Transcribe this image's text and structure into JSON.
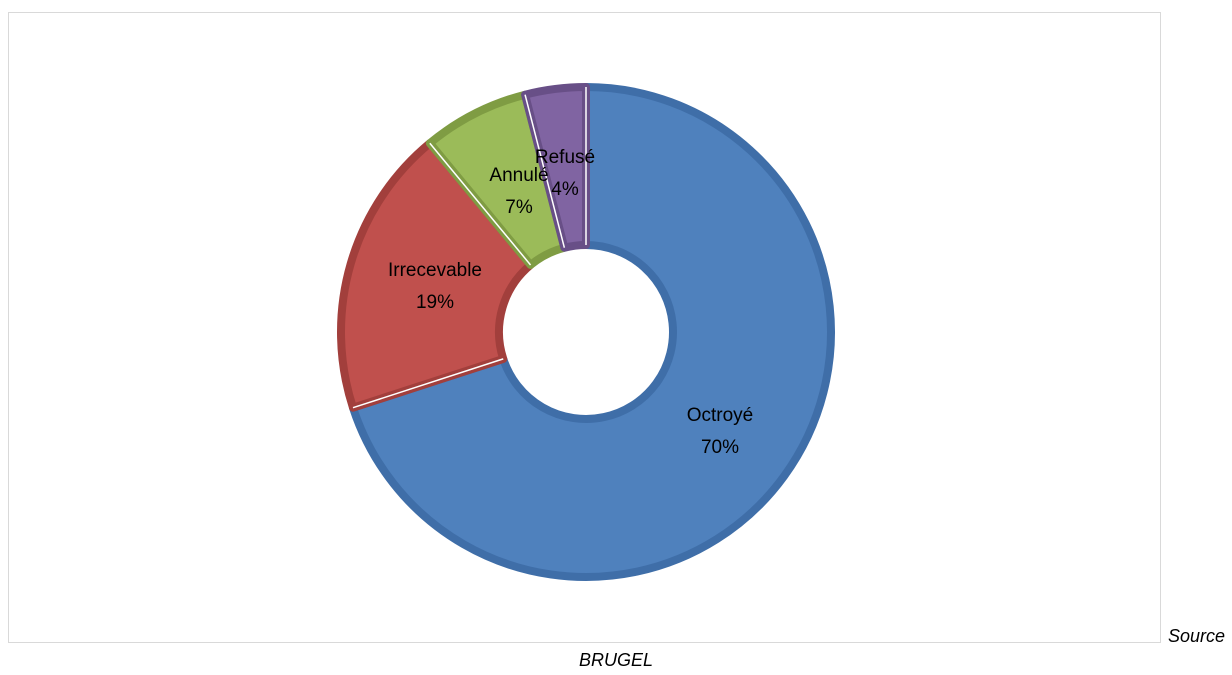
{
  "chart_data": {
    "type": "pie",
    "variant": "doughnut",
    "title": "",
    "slices": [
      {
        "label": "Octroyé",
        "value": 70,
        "display": "70%",
        "color": "#4f81bd",
        "edge": "#3f6ea8"
      },
      {
        "label": "Irrecevable",
        "value": 19,
        "display": "19%",
        "color": "#c0504d",
        "edge": "#a23f3c"
      },
      {
        "label": "Annulé",
        "value": 7,
        "display": "7%",
        "color": "#9bbb59",
        "edge": "#7f9c43"
      },
      {
        "label": "Refusé",
        "value": 4,
        "display": "4%",
        "color": "#8064a2",
        "edge": "#684f87"
      }
    ],
    "start": "12 o'clock",
    "direction": "clockwise",
    "legend": "none",
    "data_labels": "category and percentage"
  },
  "source": {
    "line1": "Source",
    "line2": "BRUGEL"
  }
}
